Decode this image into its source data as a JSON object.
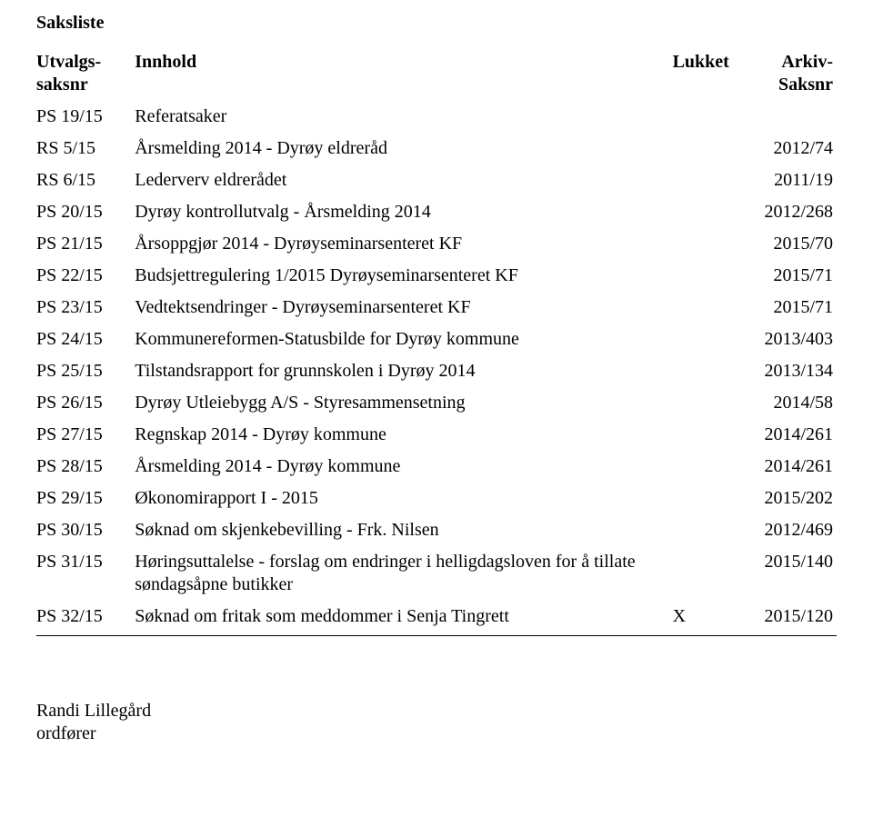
{
  "title": "Saksliste",
  "columns": {
    "c1a": "Utvalgs-",
    "c1b": "saksnr",
    "c2": "Innhold",
    "c3": "Lukket",
    "c4a": "Arkiv-",
    "c4b": "Saksnr"
  },
  "rows": [
    {
      "nr": "PS 19/15",
      "innhold": "Referatsaker",
      "lukket": "",
      "arkiv": ""
    },
    {
      "nr": "RS 5/15",
      "innhold": "Årsmelding 2014 - Dyrøy eldreråd",
      "lukket": "",
      "arkiv": "2012/74"
    },
    {
      "nr": "RS 6/15",
      "innhold": "Lederverv eldrerådet",
      "lukket": "",
      "arkiv": "2011/19"
    },
    {
      "nr": "PS 20/15",
      "innhold": "Dyrøy kontrollutvalg - Årsmelding 2014",
      "lukket": "",
      "arkiv": "2012/268"
    },
    {
      "nr": "PS 21/15",
      "innhold": "Årsoppgjør 2014 - Dyrøyseminarsenteret KF",
      "lukket": "",
      "arkiv": "2015/70"
    },
    {
      "nr": "PS 22/15",
      "innhold": "Budsjettregulering 1/2015 Dyrøyseminarsenteret KF",
      "lukket": "",
      "arkiv": "2015/71"
    },
    {
      "nr": "PS 23/15",
      "innhold": "Vedtektsendringer - Dyrøyseminarsenteret KF",
      "lukket": "",
      "arkiv": "2015/71"
    },
    {
      "nr": "PS 24/15",
      "innhold": "Kommunereformen-Statusbilde for Dyrøy kommune",
      "lukket": "",
      "arkiv": "2013/403"
    },
    {
      "nr": "PS 25/15",
      "innhold": "Tilstandsrapport for grunnskolen i Dyrøy 2014",
      "lukket": "",
      "arkiv": "2013/134"
    },
    {
      "nr": "PS 26/15",
      "innhold": "Dyrøy Utleiebygg A/S - Styresammensetning",
      "lukket": "",
      "arkiv": "2014/58"
    },
    {
      "nr": "PS 27/15",
      "innhold": "Regnskap 2014 - Dyrøy kommune",
      "lukket": "",
      "arkiv": "2014/261"
    },
    {
      "nr": "PS 28/15",
      "innhold": "Årsmelding 2014 - Dyrøy kommune",
      "lukket": "",
      "arkiv": "2014/261"
    },
    {
      "nr": "PS 29/15",
      "innhold": "Økonomirapport I - 2015",
      "lukket": "",
      "arkiv": "2015/202"
    },
    {
      "nr": "PS 30/15",
      "innhold": "Søknad om skjenkebevilling - Frk. Nilsen",
      "lukket": "",
      "arkiv": "2012/469"
    },
    {
      "nr": "PS 31/15",
      "innhold": "Høringsuttalelse - forslag om endringer i helligdagsloven for å tillate søndagsåpne butikker",
      "lukket": "",
      "arkiv": "2015/140"
    },
    {
      "nr": "PS 32/15",
      "innhold": "Søknad om fritak som meddommer i Senja Tingrett",
      "lukket": "X",
      "arkiv": "2015/120"
    }
  ],
  "signature": {
    "name": "Randi Lillegård",
    "title": "ordfører"
  }
}
